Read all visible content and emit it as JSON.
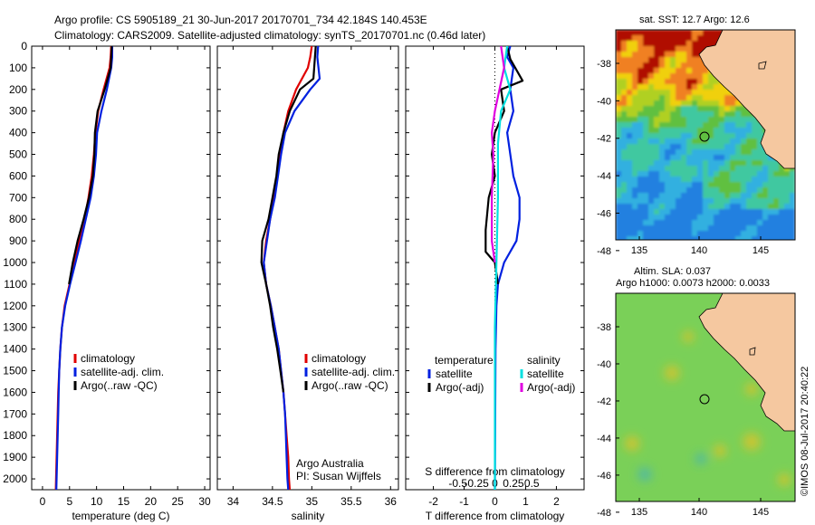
{
  "header": {
    "line1": "Argo profile: CS 5905189_21 30-Jun-2017 20170701_734 42.184S 140.453E",
    "line2": "Climatology: CARS2009. Satellite-adjusted climatology: synTS_20170701.nc (0.46d later)"
  },
  "colors": {
    "climatology": "#e00000",
    "satellite": "#0020e0",
    "argo": "#000000",
    "cyan": "#00e0e0",
    "magenta": "#e000e0",
    "land": "#f5c8a0"
  },
  "chart_data": [
    {
      "type": "line",
      "name": "temperature-panel",
      "xlabel": "temperature (deg C)",
      "xlim": [
        -2,
        31
      ],
      "xticks": [
        0,
        5,
        10,
        15,
        20,
        25,
        30
      ],
      "ylim": [
        0,
        2050
      ],
      "yticks": [
        0,
        100,
        200,
        300,
        400,
        500,
        600,
        700,
        800,
        900,
        1000,
        1100,
        1200,
        1300,
        1400,
        1500,
        1600,
        1700,
        1800,
        1900,
        2000
      ],
      "inverted_y": true,
      "legend": [
        "climatology",
        "satellite-adj. clim.",
        "Argo(..raw -QC)"
      ],
      "series": [
        {
          "name": "climatology",
          "color": "#e00000",
          "points": [
            [
              12.7,
              0
            ],
            [
              12.6,
              50
            ],
            [
              12.4,
              100
            ],
            [
              11.3,
              200
            ],
            [
              10.3,
              300
            ],
            [
              9.8,
              400
            ],
            [
              9.5,
              500
            ],
            [
              9.1,
              600
            ],
            [
              8.5,
              700
            ],
            [
              7.8,
              800
            ],
            [
              6.8,
              900
            ],
            [
              5.9,
              1000
            ],
            [
              5.0,
              1100
            ],
            [
              4.1,
              1200
            ],
            [
              3.6,
              1300
            ],
            [
              3.3,
              1400
            ],
            [
              3.1,
              1500
            ],
            [
              2.9,
              1600
            ],
            [
              2.8,
              1700
            ],
            [
              2.7,
              1800
            ],
            [
              2.6,
              1900
            ],
            [
              2.5,
              2000
            ],
            [
              2.45,
              2050
            ]
          ]
        },
        {
          "name": "satellite-adj. clim.",
          "color": "#0020e0",
          "points": [
            [
              12.9,
              0
            ],
            [
              12.9,
              50
            ],
            [
              12.7,
              100
            ],
            [
              11.9,
              200
            ],
            [
              10.9,
              300
            ],
            [
              10.1,
              400
            ],
            [
              9.9,
              500
            ],
            [
              9.5,
              600
            ],
            [
              8.9,
              700
            ],
            [
              8.0,
              800
            ],
            [
              7.1,
              900
            ],
            [
              6.1,
              1000
            ],
            [
              5.1,
              1100
            ],
            [
              4.2,
              1200
            ],
            [
              3.6,
              1300
            ],
            [
              3.3,
              1400
            ],
            [
              3.1,
              1500
            ],
            [
              3.0,
              1600
            ],
            [
              2.9,
              1700
            ],
            [
              2.8,
              1800
            ],
            [
              2.7,
              1900
            ],
            [
              2.6,
              2000
            ],
            [
              2.55,
              2050
            ]
          ]
        },
        {
          "name": "Argo(..raw -QC)",
          "color": "#000000",
          "points": [
            [
              12.8,
              0
            ],
            [
              12.7,
              50
            ],
            [
              12.6,
              100
            ],
            [
              11.5,
              200
            ],
            [
              10.2,
              300
            ],
            [
              9.7,
              400
            ],
            [
              9.6,
              500
            ],
            [
              9.3,
              600
            ],
            [
              8.6,
              700
            ],
            [
              7.6,
              800
            ],
            [
              6.5,
              900
            ],
            [
              5.6,
              1000
            ],
            [
              4.9,
              1100
            ]
          ]
        }
      ]
    },
    {
      "type": "line",
      "name": "salinity-panel",
      "xlabel": "salinity",
      "xlim": [
        33.8,
        36.1
      ],
      "xticks": [
        34,
        34.5,
        35,
        35.5,
        36
      ],
      "ylim": [
        0,
        2050
      ],
      "inverted_y": true,
      "legend": [
        "climatology",
        "satellite-adj. clim.",
        "Argo(..raw -QC)"
      ],
      "annotation": [
        "Argo Australia",
        "PI: Susan Wijffels"
      ],
      "series": [
        {
          "name": "climatology",
          "color": "#e00000",
          "points": [
            [
              35.0,
              0
            ],
            [
              34.98,
              50
            ],
            [
              34.95,
              100
            ],
            [
              34.8,
              200
            ],
            [
              34.7,
              300
            ],
            [
              34.64,
              400
            ],
            [
              34.6,
              500
            ],
            [
              34.56,
              600
            ],
            [
              34.52,
              700
            ],
            [
              34.47,
              800
            ],
            [
              34.42,
              900
            ],
            [
              34.39,
              1000
            ],
            [
              34.42,
              1100
            ],
            [
              34.48,
              1200
            ],
            [
              34.53,
              1300
            ],
            [
              34.58,
              1400
            ],
            [
              34.61,
              1500
            ],
            [
              34.64,
              1600
            ],
            [
              34.66,
              1700
            ],
            [
              34.68,
              1800
            ],
            [
              34.7,
              1900
            ],
            [
              34.71,
              2000
            ],
            [
              34.72,
              2050
            ]
          ]
        },
        {
          "name": "satellite-adj. clim.",
          "color": "#0020e0",
          "points": [
            [
              35.08,
              0
            ],
            [
              35.07,
              50
            ],
            [
              35.1,
              150
            ],
            [
              34.98,
              200
            ],
            [
              34.78,
              300
            ],
            [
              34.66,
              400
            ],
            [
              34.61,
              500
            ],
            [
              34.57,
              600
            ],
            [
              34.53,
              700
            ],
            [
              34.47,
              800
            ],
            [
              34.43,
              900
            ],
            [
              34.39,
              1000
            ],
            [
              34.42,
              1100
            ],
            [
              34.48,
              1200
            ],
            [
              34.53,
              1300
            ],
            [
              34.58,
              1400
            ],
            [
              34.61,
              1500
            ],
            [
              34.64,
              1600
            ],
            [
              34.66,
              1700
            ],
            [
              34.67,
              1800
            ],
            [
              34.68,
              1900
            ],
            [
              34.69,
              2000
            ],
            [
              34.7,
              2050
            ]
          ]
        },
        {
          "name": "Argo(..raw -QC)",
          "color": "#000000",
          "points": [
            [
              35.05,
              0
            ],
            [
              35.04,
              50
            ],
            [
              35.02,
              150
            ],
            [
              34.85,
              200
            ],
            [
              34.72,
              300
            ],
            [
              34.64,
              400
            ],
            [
              34.58,
              500
            ],
            [
              34.55,
              600
            ],
            [
              34.5,
              700
            ],
            [
              34.45,
              800
            ],
            [
              34.37,
              900
            ],
            [
              34.36,
              1000
            ],
            [
              34.42,
              1100
            ],
            [
              34.47,
              1200
            ],
            [
              34.51,
              1300
            ],
            [
              34.56,
              1400
            ],
            [
              34.6,
              1500
            ],
            [
              34.64,
              1600
            ]
          ]
        }
      ]
    },
    {
      "type": "line",
      "name": "difference-panel",
      "xlabel": "T difference from climatology",
      "top_label": "S difference from climatology",
      "xlim": [
        -2.9,
        2.9
      ],
      "xticks": [
        -2,
        -1,
        0,
        1,
        2
      ],
      "s_ticks": [
        "-0.5",
        "-0.25",
        "0",
        "0.25",
        "0.5"
      ],
      "ylim": [
        0,
        2050
      ],
      "inverted_y": true,
      "legend_left": [
        "temperature",
        "satellite",
        "Argo(-adj)"
      ],
      "legend_right": [
        "salinity",
        "satellite",
        "Argo(-adj)"
      ],
      "series": [
        {
          "name": "T satellite",
          "color": "#0020e0",
          "points": [
            [
              0.5,
              0
            ],
            [
              0.4,
              50
            ],
            [
              0.6,
              100
            ],
            [
              0.5,
              200
            ],
            [
              0.6,
              300
            ],
            [
              0.4,
              400
            ],
            [
              0.5,
              500
            ],
            [
              0.6,
              600
            ],
            [
              0.8,
              700
            ],
            [
              0.8,
              800
            ],
            [
              0.7,
              900
            ],
            [
              0.3,
              1000
            ],
            [
              0.1,
              1100
            ],
            [
              0.05,
              1200
            ],
            [
              0.02,
              1400
            ],
            [
              0.0,
              2050
            ]
          ]
        },
        {
          "name": "T Argo(-adj)",
          "color": "#000000",
          "points": [
            [
              0.4,
              0
            ],
            [
              0.5,
              60
            ],
            [
              0.9,
              160
            ],
            [
              0.2,
              200
            ],
            [
              0.3,
              300
            ],
            [
              0.0,
              400
            ],
            [
              -0.1,
              500
            ],
            [
              0.0,
              600
            ],
            [
              -0.2,
              700
            ],
            [
              -0.3,
              850
            ],
            [
              -0.3,
              950
            ],
            [
              0.0,
              1000
            ],
            [
              0.1,
              1100
            ]
          ]
        },
        {
          "name": "S satellite",
          "color": "#00e0e0",
          "points": [
            [
              0.4,
              0
            ],
            [
              0.3,
              100
            ],
            [
              0.5,
              200
            ],
            [
              0.2,
              300
            ],
            [
              0.1,
              450
            ],
            [
              0.1,
              700
            ],
            [
              0.05,
              1000
            ],
            [
              0.0,
              1300
            ],
            [
              0.0,
              2050
            ]
          ]
        },
        {
          "name": "S Argo(-adj)",
          "color": "#e000e0",
          "points": [
            [
              0.2,
              0
            ],
            [
              0.3,
              100
            ],
            [
              0.0,
              300
            ],
            [
              -0.1,
              400
            ],
            [
              -0.05,
              500
            ],
            [
              -0.1,
              700
            ],
            [
              -0.1,
              900
            ],
            [
              0.0,
              1000
            ]
          ]
        }
      ]
    }
  ],
  "sst_map": {
    "title": "sat. SST: 12.7  Argo: 12.6",
    "xticks": [
      "135",
      "140",
      "145"
    ],
    "yticks": [
      "-38",
      "-40",
      "-42",
      "-44",
      "-46",
      "-48"
    ]
  },
  "sla_map": {
    "title1": "Altim. SLA: 0.037",
    "title2": "Argo h1000: 0.0073 h2000: 0.0033",
    "xticks": [
      "135",
      "140",
      "145"
    ],
    "yticks": [
      "-38",
      "-40",
      "-42",
      "-44",
      "-46",
      "-48"
    ]
  },
  "credit": "©IMOS 08-Jul-2017 20:40:22"
}
